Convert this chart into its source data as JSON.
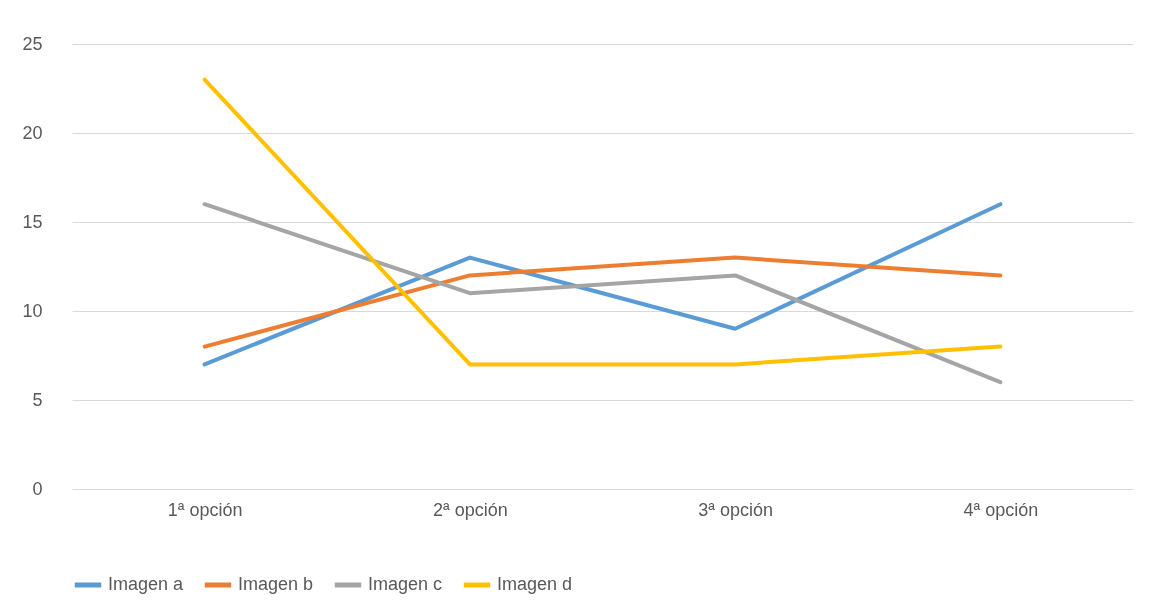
{
  "chart_data": {
    "type": "line",
    "categories": [
      "1ª opción",
      "2ª opción",
      "3ª opción",
      "4ª opción"
    ],
    "series": [
      {
        "name": "Imagen a",
        "color": "#5b9bd5",
        "values": [
          7,
          13,
          9,
          16
        ]
      },
      {
        "name": "Imagen b",
        "color": "#ed7d31",
        "values": [
          8,
          12,
          13,
          12
        ]
      },
      {
        "name": "Imagen c",
        "color": "#a5a5a5",
        "values": [
          16,
          11,
          12,
          6
        ]
      },
      {
        "name": "Imagen d",
        "color": "#ffc000",
        "values": [
          23,
          7,
          7,
          8
        ]
      }
    ],
    "ylim": [
      0,
      25
    ],
    "yticks": [
      0,
      5,
      10,
      15,
      20,
      25
    ],
    "grid": "y",
    "legend": "bottom"
  }
}
